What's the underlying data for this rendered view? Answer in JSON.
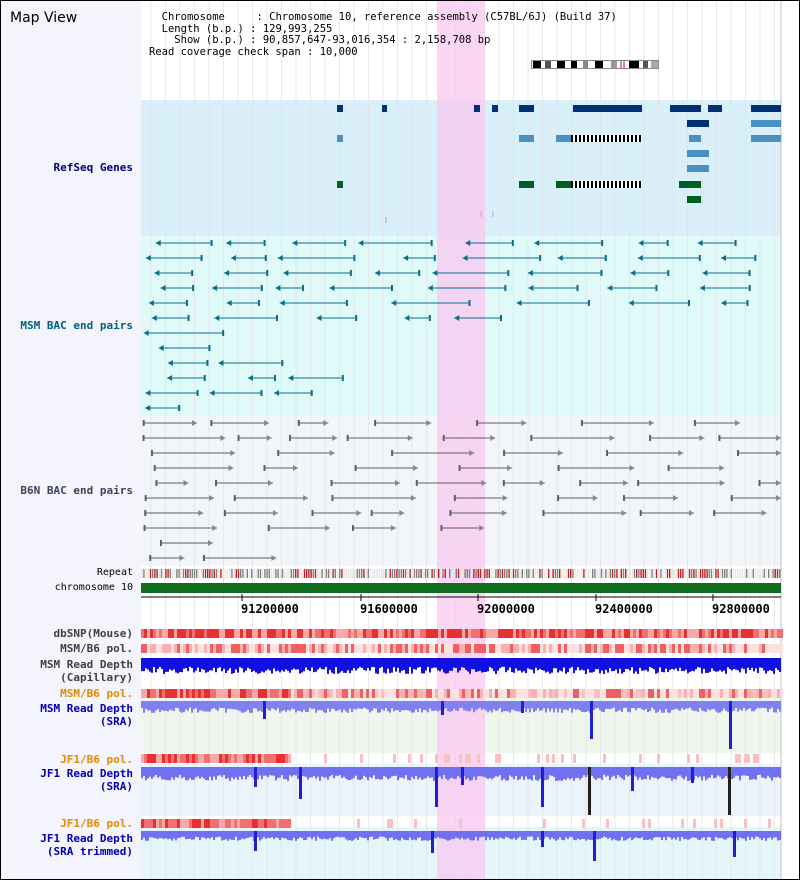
{
  "title": "Map View",
  "info": {
    "chromosome_label": "Chromosome",
    "chromosome_value": "Chromosome 10, reference assembly (C57BL/6J) (Build 37)",
    "length_label": "Length (b.p.)",
    "length_value": "129,993,255",
    "show_label": "Show (b.p.)",
    "show_value": "90,857,647-93,016,354 : 2,158,708 bp",
    "span_label": "Read coverage check span",
    "span_value": "10,000"
  },
  "tracks": {
    "refseq": "RefSeq Genes",
    "msm_bac": "MSM BAC end pairs",
    "b6n_bac": "B6N BAC end pairs",
    "repeat": "Repeat",
    "chromosome": "chromosome 10",
    "dbsnp": "dbSNP(Mouse)",
    "msm_b6_pol_1": "MSM/B6 pol.",
    "msm_read_depth_cap_1": "MSM Read Depth",
    "msm_read_depth_cap_2": "(Capillary)",
    "msm_b6_pol_2": "MSM/B6 pol.",
    "msm_read_depth_sra_1": "MSM Read Depth",
    "msm_read_depth_sra_2": "(SRA)",
    "jf1_b6_pol_1": "JF1/B6 pol.",
    "jf1_read_depth_sra_1": "JF1 Read Depth",
    "jf1_read_depth_sra_2": "(SRA)",
    "jf1_b6_pol_2": "JF1/B6 pol.",
    "jf1_read_depth_trim_1": "JF1 Read Depth",
    "jf1_read_depth_trim_2": "(SRA trimmed)"
  },
  "ruler": {
    "ticks": [
      "91200000",
      "91600000",
      "92000000",
      "92400000",
      "92800000"
    ]
  },
  "colors": {
    "refseq_bg": "#d9f0fa",
    "msm_bg": "#e0fafa",
    "b6n_bg": "#f2f6fa",
    "highlight": "#f9c8f0",
    "refseq_label": "#000080",
    "msm_label": "#006080",
    "b6n_label": "#404060",
    "pol_label": "#e08a00",
    "depth_label": "#0000b0"
  }
}
